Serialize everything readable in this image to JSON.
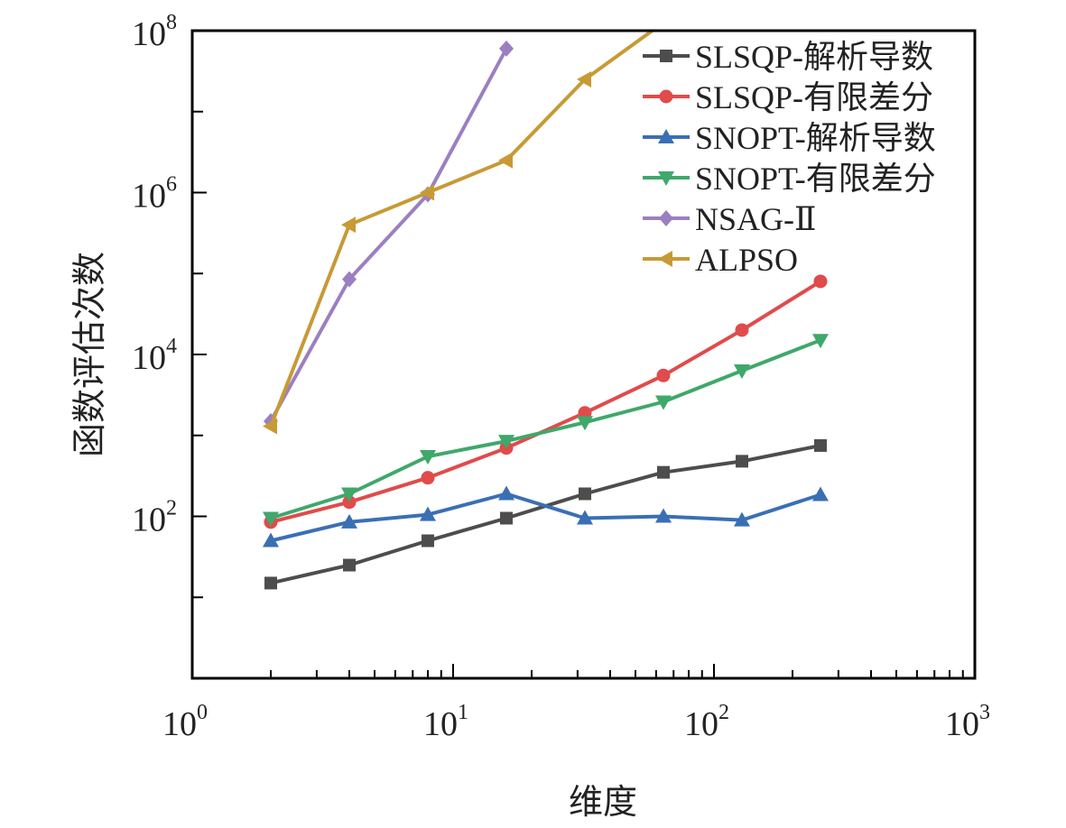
{
  "chart_data": {
    "type": "line",
    "xscale": "log",
    "yscale": "log",
    "xlim": [
      1,
      1000
    ],
    "ylim": [
      1,
      100000000
    ],
    "xlabel": "维度",
    "ylabel": "函数评估次数",
    "x_tick_labels": [
      {
        "base": "10",
        "exp": "0",
        "value": 1
      },
      {
        "base": "10",
        "exp": "1",
        "value": 10
      },
      {
        "base": "10",
        "exp": "2",
        "value": 100
      },
      {
        "base": "10",
        "exp": "3",
        "value": 1000
      }
    ],
    "y_tick_labels": [
      {
        "base": "10",
        "exp": "2",
        "value": 100
      },
      {
        "base": "10",
        "exp": "4",
        "value": 10000
      },
      {
        "base": "10",
        "exp": "6",
        "value": 1000000
      },
      {
        "base": "10",
        "exp": "8",
        "value": 100000000
      }
    ],
    "legend_position": "top-right",
    "series": [
      {
        "name": "SLSQP-解析导数",
        "color": "#4d4d4d",
        "marker": "square",
        "x": [
          2,
          4,
          8,
          16,
          32,
          64,
          128,
          256
        ],
        "y": [
          15,
          25,
          50,
          95,
          190,
          350,
          480,
          750
        ]
      },
      {
        "name": "SLSQP-有限差分",
        "color": "#e04b4b",
        "marker": "circle",
        "x": [
          2,
          4,
          8,
          16,
          32,
          64,
          128,
          256
        ],
        "y": [
          85,
          150,
          300,
          700,
          1900,
          5500,
          20000,
          80000
        ]
      },
      {
        "name": "SNOPT-解析导数",
        "color": "#3a6fb5",
        "marker": "triangle-up",
        "x": [
          2,
          4,
          8,
          16,
          32,
          64,
          128,
          256
        ],
        "y": [
          50,
          85,
          105,
          190,
          95,
          100,
          90,
          185
        ]
      },
      {
        "name": "SNOPT-有限差分",
        "color": "#3fa86b",
        "marker": "triangle-down",
        "x": [
          2,
          4,
          8,
          16,
          32,
          64,
          128,
          256
        ],
        "y": [
          95,
          190,
          550,
          850,
          1450,
          2600,
          6300,
          15000
        ]
      },
      {
        "name": "NSAG-Ⅱ",
        "color": "#9c7fc0",
        "marker": "diamond",
        "x": [
          2,
          4,
          8,
          16
        ],
        "y": [
          1500,
          85000,
          950000,
          60000000
        ]
      },
      {
        "name": "ALPSO",
        "color": "#c79a35",
        "marker": "triangle-left",
        "x": [
          2,
          4,
          8,
          16,
          32,
          58
        ],
        "y": [
          1300,
          400000,
          1000000,
          2500000,
          25000000,
          100000000
        ]
      }
    ]
  }
}
